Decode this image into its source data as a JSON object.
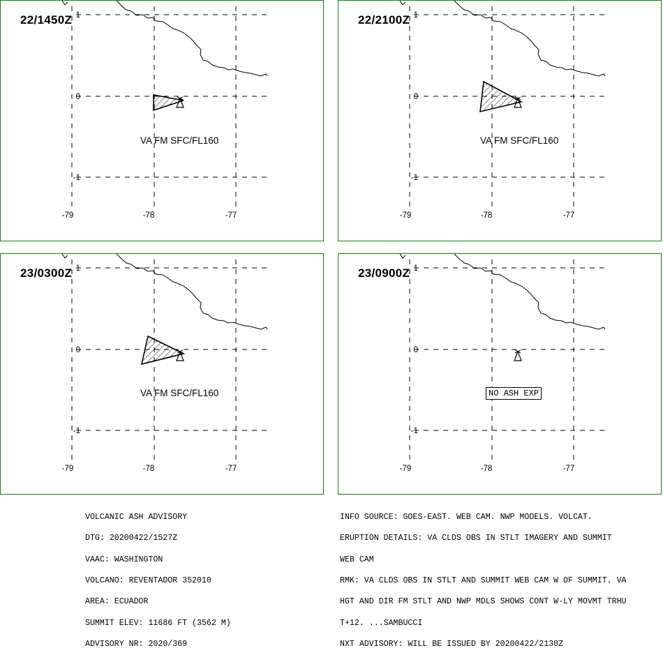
{
  "panels": [
    {
      "time": "22/1450Z",
      "label": "VA FM SFC/FL160",
      "ash": true,
      "poly": [
        [
          219,
          135
        ],
        [
          262,
          143
        ],
        [
          219,
          157
        ]
      ]
    },
    {
      "time": "22/2100Z",
      "label": "VA FM SFC/FL160",
      "ash": true,
      "poly": [
        [
          692,
          116
        ],
        [
          746,
          145
        ],
        [
          687,
          159
        ]
      ]
    },
    {
      "time": "23/0300Z",
      "label": "VA FM SFC/FL160",
      "ash": true,
      "poly": [
        [
          211,
          481
        ],
        [
          262,
          506
        ],
        [
          202,
          521
        ]
      ]
    },
    {
      "time": "23/0900Z",
      "label": "NO ASH EXP",
      "ash": false,
      "poly": []
    }
  ],
  "axes": {
    "lon_ticks": [
      "-79",
      "-78",
      "-77"
    ],
    "lat_ticks": [
      "1",
      "0",
      "-1"
    ]
  },
  "advisory_left": [
    "VOLCANIC ASH ADVISORY",
    "DTG: 20200422/1527Z",
    "VAAC: WASHINGTON",
    "VOLCANO: REVENTADOR 352010",
    "AREA: ECUADOR",
    "SUMMIT ELEV: 11686 FT (3562 M)",
    "ADVISORY NR: 2020/369"
  ],
  "advisory_right": [
    "INFO SOURCE: GOES-EAST. WEB CAM. NWP MODELS. VOLCAT.",
    "ERUPTION DETAILS: VA CLDS OBS IN STLT IMAGERY AND SUMMIT",
    "WEB CAM",
    "RMK: VA CLDS OBS IN STLT AND SUMMIT WEB CAM W OF SUMMIT. VA",
    "HGT AND DIR FM STLT AND NWP MDLS SHOWS CONT W-LY MOVMT TRHU",
    "T+12. ...SAMBUCCI",
    "NXT ADVISORY: WILL BE ISSUED BY 20200422/2130Z"
  ],
  "colors": {
    "frame": "#1a7a1a",
    "ink": "#000000"
  }
}
